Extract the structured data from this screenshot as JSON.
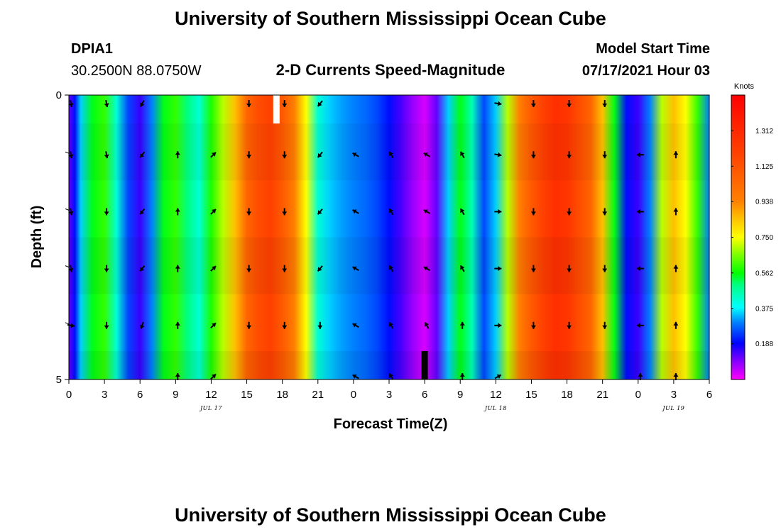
{
  "page": {
    "title_top": "University of Southern Mississippi Ocean Cube",
    "title_bottom": "University of Southern Mississippi Ocean Cube",
    "station_id": "DPIA1",
    "station_coords": "30.2500N  88.0750W",
    "subtitle": "2-D Currents Speed-Magnitude",
    "model_start_label": "Model Start Time",
    "model_start_value": "07/17/2021 Hour 03"
  },
  "chart_data": {
    "type": "heatmap",
    "title": "2-D Currents Speed-Magnitude",
    "xlabel": "Forecast Time(Z)",
    "ylabel": "Depth (ft)",
    "x_range_hours": [
      0,
      54
    ],
    "x_ticks": [
      {
        "h": 0,
        "label": "0"
      },
      {
        "h": 3,
        "label": "3"
      },
      {
        "h": 6,
        "label": "6"
      },
      {
        "h": 9,
        "label": "9"
      },
      {
        "h": 12,
        "label": "12"
      },
      {
        "h": 15,
        "label": "15"
      },
      {
        "h": 18,
        "label": "18"
      },
      {
        "h": 21,
        "label": "21"
      },
      {
        "h": 24,
        "label": "0"
      },
      {
        "h": 27,
        "label": "3"
      },
      {
        "h": 30,
        "label": "6"
      },
      {
        "h": 33,
        "label": "9"
      },
      {
        "h": 36,
        "label": "12"
      },
      {
        "h": 39,
        "label": "15"
      },
      {
        "h": 42,
        "label": "18"
      },
      {
        "h": 45,
        "label": "21"
      },
      {
        "h": 48,
        "label": "0"
      },
      {
        "h": 51,
        "label": "3"
      },
      {
        "h": 54,
        "label": "6"
      }
    ],
    "date_labels": [
      {
        "h": 12,
        "label": "JUL 17"
      },
      {
        "h": 36,
        "label": "JUL 18"
      },
      {
        "h": 51,
        "label": "JUL 19"
      }
    ],
    "y_range_ft": [
      0,
      5
    ],
    "y_tick_labels": [
      {
        "ft": 0,
        "label": "0"
      },
      {
        "ft": 5,
        "label": "5"
      }
    ],
    "y_minor_ticks_ft": [
      1,
      2,
      3,
      4
    ],
    "colorbar": {
      "unit": "Knots",
      "range": [
        0,
        1.5
      ],
      "tick_labels": [
        "0.188",
        "0.375",
        "0.562",
        "0.750",
        "0.938",
        "1.125",
        "1.312"
      ],
      "tick_values": [
        0.188,
        0.375,
        0.562,
        0.75,
        0.938,
        1.125,
        1.312
      ],
      "stops": [
        {
          "v": 0.0,
          "color": "#ff00ff"
        },
        {
          "v": 0.1,
          "color": "#8000ff"
        },
        {
          "v": 0.19,
          "color": "#0000ff"
        },
        {
          "v": 0.3,
          "color": "#0080ff"
        },
        {
          "v": 0.38,
          "color": "#00ffff"
        },
        {
          "v": 0.5,
          "color": "#00ff80"
        },
        {
          "v": 0.56,
          "color": "#00ff00"
        },
        {
          "v": 0.66,
          "color": "#80ff00"
        },
        {
          "v": 0.75,
          "color": "#ffff00"
        },
        {
          "v": 0.85,
          "color": "#ffc000"
        },
        {
          "v": 0.94,
          "color": "#ff8000"
        },
        {
          "v": 1.2,
          "color": "#ff4000"
        },
        {
          "v": 1.5,
          "color": "#ff0000"
        }
      ]
    },
    "speed_profile_knots": [
      {
        "h": 0.0,
        "v": 0.12
      },
      {
        "h": 0.5,
        "v": 0.2
      },
      {
        "h": 1.0,
        "v": 0.35
      },
      {
        "h": 2.0,
        "v": 0.55
      },
      {
        "h": 3.0,
        "v": 0.6
      },
      {
        "h": 4.0,
        "v": 0.42
      },
      {
        "h": 5.0,
        "v": 0.25
      },
      {
        "h": 6.0,
        "v": 0.15
      },
      {
        "h": 7.0,
        "v": 0.3
      },
      {
        "h": 8.0,
        "v": 0.55
      },
      {
        "h": 9.0,
        "v": 0.6
      },
      {
        "h": 10.0,
        "v": 0.5
      },
      {
        "h": 11.0,
        "v": 0.42
      },
      {
        "h": 12.0,
        "v": 0.58
      },
      {
        "h": 13.0,
        "v": 0.7
      },
      {
        "h": 14.0,
        "v": 0.85
      },
      {
        "h": 15.0,
        "v": 1.05
      },
      {
        "h": 16.0,
        "v": 1.15
      },
      {
        "h": 17.0,
        "v": 1.2
      },
      {
        "h": 18.0,
        "v": 1.1
      },
      {
        "h": 19.0,
        "v": 0.95
      },
      {
        "h": 20.0,
        "v": 0.75
      },
      {
        "h": 21.0,
        "v": 0.42
      },
      {
        "h": 22.0,
        "v": 0.35
      },
      {
        "h": 23.0,
        "v": 0.32
      },
      {
        "h": 24.0,
        "v": 0.3
      },
      {
        "h": 25.0,
        "v": 0.28
      },
      {
        "h": 26.0,
        "v": 0.25
      },
      {
        "h": 27.0,
        "v": 0.2
      },
      {
        "h": 28.0,
        "v": 0.14
      },
      {
        "h": 29.0,
        "v": 0.08
      },
      {
        "h": 30.0,
        "v": 0.03
      },
      {
        "h": 31.0,
        "v": 0.12
      },
      {
        "h": 32.0,
        "v": 0.35
      },
      {
        "h": 33.0,
        "v": 0.55
      },
      {
        "h": 34.0,
        "v": 0.45
      },
      {
        "h": 35.0,
        "v": 0.25
      },
      {
        "h": 36.0,
        "v": 0.35
      },
      {
        "h": 37.0,
        "v": 0.7
      },
      {
        "h": 38.0,
        "v": 0.95
      },
      {
        "h": 39.0,
        "v": 1.1
      },
      {
        "h": 40.0,
        "v": 1.2
      },
      {
        "h": 41.0,
        "v": 1.28
      },
      {
        "h": 42.0,
        "v": 1.25
      },
      {
        "h": 43.0,
        "v": 1.15
      },
      {
        "h": 44.0,
        "v": 1.05
      },
      {
        "h": 45.0,
        "v": 0.85
      },
      {
        "h": 46.0,
        "v": 0.55
      },
      {
        "h": 47.0,
        "v": 0.2
      },
      {
        "h": 48.0,
        "v": 0.15
      },
      {
        "h": 49.0,
        "v": 0.3
      },
      {
        "h": 50.0,
        "v": 0.7
      },
      {
        "h": 51.0,
        "v": 0.85
      },
      {
        "h": 52.0,
        "v": 0.75
      },
      {
        "h": 53.0,
        "v": 0.6
      },
      {
        "h": 54.0,
        "v": 0.3
      }
    ],
    "depth_layers_ft": [
      0,
      0.5,
      1.5,
      2.5,
      3.5,
      4.5
    ],
    "missing_data": [
      {
        "h": 17.5,
        "ft_from": 0,
        "ft_to": 0.5,
        "color": "#ffffff"
      },
      {
        "h": 30.0,
        "ft_from": 4.5,
        "ft_to": 5,
        "color": "#000000"
      }
    ],
    "vector_hours": [
      0,
      3,
      6,
      9,
      12,
      15,
      18,
      21,
      24,
      27,
      30,
      33,
      36,
      39,
      42,
      45,
      48,
      51
    ],
    "vector_depths_ft": [
      0.1,
      1,
      2,
      3,
      4,
      4.9
    ],
    "vector_directions_deg": [
      [
        170,
        170,
        210,
        null,
        null,
        180,
        180,
        220,
        null,
        null,
        null,
        null,
        100,
        180,
        180,
        180,
        null,
        null
      ],
      [
        170,
        170,
        220,
        0,
        45,
        180,
        180,
        220,
        300,
        330,
        300,
        330,
        100,
        180,
        180,
        180,
        270,
        0
      ],
      [
        170,
        180,
        220,
        0,
        45,
        180,
        180,
        220,
        300,
        330,
        300,
        330,
        90,
        180,
        180,
        180,
        270,
        0
      ],
      [
        170,
        180,
        220,
        0,
        45,
        180,
        180,
        220,
        300,
        330,
        300,
        330,
        90,
        180,
        180,
        180,
        270,
        0
      ],
      [
        100,
        180,
        200,
        0,
        45,
        180,
        180,
        180,
        300,
        330,
        330,
        0,
        90,
        180,
        180,
        180,
        270,
        0
      ],
      [
        null,
        null,
        null,
        0,
        45,
        null,
        null,
        null,
        300,
        330,
        null,
        0,
        60,
        null,
        null,
        null,
        0,
        0
      ]
    ]
  }
}
